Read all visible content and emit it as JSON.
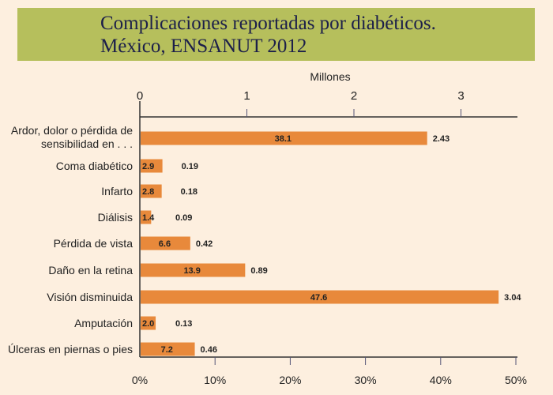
{
  "chart_data": {
    "type": "bar",
    "orientation": "horizontal",
    "title": [
      "Complicaciones reportadas por diabéticos.",
      "México, ENSANUT 2012"
    ],
    "top_axis_label": "Millones",
    "top_axis_ticks": [
      "0",
      "1",
      "2",
      "3"
    ],
    "top_axis_range": [
      0,
      3.5
    ],
    "bottom_axis_ticks": [
      "0%",
      "10%",
      "20%",
      "30%",
      "40%",
      "50%"
    ],
    "bottom_axis_range": [
      0,
      50
    ],
    "categories": [
      "Ardor, dolor o pérdida de|sensibilidad en . . .",
      "Coma diabético",
      "Infarto",
      "Diálisis",
      "Pérdida de vista",
      "Daño en la retina",
      "Visión disminuida",
      "Amputación",
      "Úlceras en piernas o pies"
    ],
    "percent_values": [
      38.1,
      2.9,
      2.8,
      1.4,
      6.6,
      13.9,
      47.6,
      2.0,
      7.2
    ],
    "percent_labels": [
      "38.1",
      "2.9",
      "2.8",
      "1.4",
      "6.6",
      "13.9",
      "47.6",
      "2.0",
      "7.2"
    ],
    "million_labels": [
      "2.43",
      "0.19",
      "0.18",
      "0.09",
      "0.42",
      "0.89",
      "3.04",
      "0.13",
      "0.46"
    ],
    "colors": {
      "bar": "#e8893b",
      "background": "#fdefdf",
      "title_box": "#b6bf5c",
      "title_text": "#1c1f4a"
    }
  }
}
